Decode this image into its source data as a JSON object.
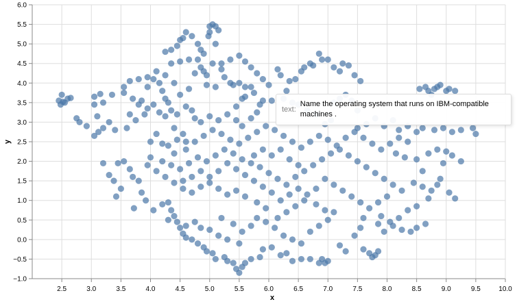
{
  "chart_data": {
    "type": "scatter",
    "title": "",
    "xlabel": "x",
    "ylabel": "y",
    "xlim": [
      2.0,
      10.0
    ],
    "ylim": [
      -1.0,
      6.0
    ],
    "x_ticks": [
      "2.5",
      "3.0",
      "3.5",
      "4.0",
      "4.5",
      "5.0",
      "5.5",
      "6.0",
      "6.5",
      "7.0",
      "7.5",
      "8.0",
      "8.5",
      "9.0",
      "9.5",
      "10.0"
    ],
    "y_ticks": [
      "6.0",
      "5.5",
      "5.0",
      "4.5",
      "4.0",
      "3.5",
      "3.0",
      "2.5",
      "2.0",
      "1.5",
      "1.0",
      "0.5",
      "0.0",
      "-0.5",
      "-1.0"
    ],
    "grid": true,
    "point_color": "#4c78a8",
    "points": [
      [
        2.45,
        3.55
      ],
      [
        2.5,
        3.7
      ],
      [
        2.55,
        3.5
      ],
      [
        2.48,
        3.45
      ],
      [
        2.6,
        3.6
      ],
      [
        2.52,
        3.52
      ],
      [
        2.65,
        3.62
      ],
      [
        2.75,
        3.1
      ],
      [
        2.8,
        3.0
      ],
      [
        2.92,
        2.9
      ],
      [
        3.05,
        3.45
      ],
      [
        3.05,
        3.65
      ],
      [
        3.15,
        3.72
      ],
      [
        3.2,
        3.5
      ],
      [
        3.1,
        3.15
      ],
      [
        3.3,
        3.0
      ],
      [
        3.2,
        2.85
      ],
      [
        3.12,
        2.75
      ],
      [
        3.05,
        2.65
      ],
      [
        3.35,
        3.7
      ],
      [
        3.55,
        3.75
      ],
      [
        3.7,
        3.6
      ],
      [
        3.65,
        3.2
      ],
      [
        3.6,
        2.85
      ],
      [
        3.85,
        3.55
      ],
      [
        3.9,
        3.2
      ],
      [
        3.75,
        3.05
      ],
      [
        3.4,
        2.8
      ],
      [
        3.2,
        1.95
      ],
      [
        3.45,
        1.95
      ],
      [
        3.3,
        1.65
      ],
      [
        3.38,
        1.5
      ],
      [
        3.42,
        1.1
      ],
      [
        3.5,
        1.3
      ],
      [
        3.55,
        2.0
      ],
      [
        3.7,
        1.6
      ],
      [
        3.8,
        1.5
      ],
      [
        3.65,
        1.8
      ],
      [
        3.85,
        1.2
      ],
      [
        3.72,
        0.8
      ],
      [
        3.92,
        1.0
      ],
      [
        4.05,
        0.75
      ],
      [
        4.2,
        0.9
      ],
      [
        4.3,
        0.95
      ],
      [
        3.95,
        3.9
      ],
      [
        4.05,
        4.1
      ],
      [
        4.15,
        4.0
      ],
      [
        4.2,
        3.8
      ],
      [
        4.25,
        3.6
      ],
      [
        4.3,
        3.5
      ],
      [
        4.35,
        3.3
      ],
      [
        4.45,
        3.2
      ],
      [
        4.4,
        2.85
      ],
      [
        4.1,
        2.7
      ],
      [
        4.0,
        2.5
      ],
      [
        4.2,
        2.45
      ],
      [
        4.3,
        2.4
      ],
      [
        4.45,
        2.55
      ],
      [
        4.55,
        2.7
      ],
      [
        4.6,
        2.5
      ],
      [
        4.25,
        4.8
      ],
      [
        4.35,
        4.85
      ],
      [
        4.45,
        4.95
      ],
      [
        4.5,
        5.1
      ],
      [
        4.55,
        5.15
      ],
      [
        4.6,
        5.3
      ],
      [
        4.7,
        5.2
      ],
      [
        4.8,
        5.0
      ],
      [
        4.85,
        4.85
      ],
      [
        4.65,
        4.6
      ],
      [
        4.5,
        4.55
      ],
      [
        4.35,
        4.5
      ],
      [
        4.75,
        4.25
      ],
      [
        4.85,
        4.4
      ],
      [
        4.9,
        4.3
      ],
      [
        4.95,
        4.2
      ],
      [
        5.0,
        5.45
      ],
      [
        5.05,
        5.5
      ],
      [
        5.1,
        5.45
      ],
      [
        5.15,
        5.35
      ],
      [
        5.0,
        5.3
      ],
      [
        4.98,
        5.2
      ],
      [
        5.1,
        5.0
      ],
      [
        5.05,
        4.5
      ],
      [
        5.2,
        4.35
      ],
      [
        5.25,
        4.15
      ],
      [
        5.35,
        4.0
      ],
      [
        5.4,
        3.95
      ],
      [
        5.1,
        3.9
      ],
      [
        4.95,
        3.95
      ],
      [
        5.5,
        4.0
      ],
      [
        5.6,
        3.9
      ],
      [
        5.7,
        3.9
      ],
      [
        5.85,
        3.45
      ],
      [
        5.9,
        3.55
      ],
      [
        5.55,
        3.6
      ],
      [
        5.45,
        3.4
      ],
      [
        5.7,
        3.1
      ],
      [
        5.8,
        3.25
      ],
      [
        6.05,
        3.55
      ],
      [
        6.15,
        4.35
      ],
      [
        6.2,
        4.2
      ],
      [
        6.45,
        4.1
      ],
      [
        6.55,
        4.3
      ],
      [
        6.6,
        4.4
      ],
      [
        6.7,
        4.5
      ],
      [
        6.75,
        4.45
      ],
      [
        6.85,
        4.75
      ],
      [
        6.9,
        4.6
      ],
      [
        7.0,
        4.6
      ],
      [
        7.1,
        4.4
      ],
      [
        7.2,
        4.3
      ],
      [
        7.25,
        4.5
      ],
      [
        7.35,
        4.45
      ],
      [
        7.45,
        4.2
      ],
      [
        7.55,
        4.05
      ],
      [
        6.35,
        4.05
      ],
      [
        6.3,
        3.8
      ],
      [
        6.25,
        3.6
      ],
      [
        6.4,
        3.5
      ],
      [
        6.5,
        3.45
      ],
      [
        6.65,
        3.3
      ],
      [
        6.8,
        3.2
      ],
      [
        7.1,
        3.5
      ],
      [
        7.2,
        3.6
      ],
      [
        7.3,
        3.7
      ],
      [
        7.4,
        3.55
      ],
      [
        7.5,
        3.3
      ],
      [
        7.05,
        3.05
      ],
      [
        6.95,
        2.95
      ],
      [
        8.55,
        3.85
      ],
      [
        8.65,
        3.9
      ],
      [
        8.7,
        3.8
      ],
      [
        8.8,
        3.85
      ],
      [
        8.85,
        3.9
      ],
      [
        8.9,
        3.95
      ],
      [
        9.0,
        3.8
      ],
      [
        9.05,
        3.85
      ],
      [
        9.15,
        3.8
      ],
      [
        8.75,
        3.7
      ],
      [
        8.2,
        2.8
      ],
      [
        8.35,
        2.9
      ],
      [
        8.5,
        2.75
      ],
      [
        8.6,
        2.85
      ],
      [
        8.8,
        2.8
      ],
      [
        8.95,
        2.85
      ],
      [
        9.1,
        2.75
      ],
      [
        9.25,
        2.8
      ],
      [
        9.45,
        2.85
      ],
      [
        9.5,
        2.7
      ],
      [
        8.15,
        2.2
      ],
      [
        8.3,
        2.1
      ],
      [
        8.5,
        2.05
      ],
      [
        8.7,
        2.2
      ],
      [
        8.85,
        2.3
      ],
      [
        9.0,
        2.25
      ],
      [
        9.1,
        2.15
      ],
      [
        9.25,
        2.0
      ],
      [
        8.95,
        1.95
      ],
      [
        8.6,
        1.75
      ],
      [
        8.45,
        1.45
      ],
      [
        8.6,
        1.35
      ],
      [
        8.75,
        1.25
      ],
      [
        8.85,
        1.4
      ],
      [
        8.9,
        1.55
      ],
      [
        9.05,
        1.2
      ],
      [
        9.15,
        1.05
      ],
      [
        8.7,
        1.05
      ],
      [
        8.5,
        0.85
      ],
      [
        8.35,
        0.75
      ],
      [
        8.2,
        0.55
      ],
      [
        8.05,
        0.45
      ],
      [
        7.9,
        0.6
      ],
      [
        7.85,
        0.4
      ],
      [
        7.95,
        0.2
      ],
      [
        8.1,
        0.35
      ],
      [
        8.25,
        0.25
      ],
      [
        8.4,
        0.2
      ],
      [
        8.5,
        0.3
      ],
      [
        8.65,
        0.4
      ],
      [
        7.7,
        -0.35
      ],
      [
        7.75,
        -0.45
      ],
      [
        7.8,
        -0.4
      ],
      [
        7.85,
        -0.3
      ],
      [
        7.6,
        -0.25
      ],
      [
        7.3,
        -0.3
      ],
      [
        7.2,
        -0.15
      ],
      [
        7.45,
        0.1
      ],
      [
        7.55,
        0.3
      ],
      [
        7.6,
        0.55
      ],
      [
        7.0,
        -0.55
      ],
      [
        6.95,
        -0.6
      ],
      [
        6.9,
        -0.5
      ],
      [
        6.85,
        -0.6
      ],
      [
        6.7,
        -0.5
      ],
      [
        6.55,
        -0.5
      ],
      [
        6.4,
        -0.55
      ],
      [
        6.3,
        -0.35
      ],
      [
        6.2,
        -0.4
      ],
      [
        6.05,
        -0.2
      ],
      [
        5.9,
        -0.25
      ],
      [
        5.85,
        -0.45
      ],
      [
        5.7,
        -0.5
      ],
      [
        5.6,
        -0.6
      ],
      [
        5.55,
        -0.7
      ],
      [
        5.5,
        -0.85
      ],
      [
        5.45,
        -0.75
      ],
      [
        5.4,
        -0.6
      ],
      [
        5.3,
        -0.55
      ],
      [
        5.25,
        -0.45
      ],
      [
        5.1,
        -0.5
      ],
      [
        5.05,
        -0.35
      ],
      [
        4.95,
        -0.3
      ],
      [
        4.9,
        -0.2
      ],
      [
        4.8,
        -0.1
      ],
      [
        4.7,
        0.0
      ],
      [
        4.6,
        0.05
      ],
      [
        4.55,
        0.15
      ],
      [
        4.5,
        0.3
      ],
      [
        4.45,
        0.45
      ],
      [
        4.4,
        0.6
      ],
      [
        4.35,
        0.75
      ],
      [
        4.3,
        0.5
      ],
      [
        4.6,
        0.35
      ],
      [
        4.75,
        0.45
      ],
      [
        4.85,
        0.3
      ],
      [
        5.0,
        0.25
      ],
      [
        5.15,
        0.1
      ],
      [
        5.3,
        0.0
      ],
      [
        5.5,
        -0.1
      ],
      [
        5.2,
        0.55
      ],
      [
        5.4,
        0.4
      ],
      [
        5.55,
        0.2
      ],
      [
        5.7,
        0.35
      ],
      [
        5.8,
        0.55
      ],
      [
        5.95,
        0.45
      ],
      [
        6.1,
        0.3
      ],
      [
        6.25,
        0.1
      ],
      [
        6.4,
        0.0
      ],
      [
        6.55,
        -0.1
      ],
      [
        6.7,
        0.2
      ],
      [
        6.85,
        0.35
      ],
      [
        7.0,
        0.5
      ],
      [
        7.1,
        0.7
      ],
      [
        6.95,
        0.75
      ],
      [
        6.8,
        0.9
      ],
      [
        6.6,
        1.0
      ],
      [
        6.45,
        0.85
      ],
      [
        6.3,
        0.7
      ],
      [
        6.15,
        0.55
      ],
      [
        5.95,
        0.8
      ],
      [
        5.8,
        0.95
      ],
      [
        5.6,
        1.1
      ],
      [
        5.45,
        1.25
      ],
      [
        5.3,
        1.15
      ],
      [
        5.15,
        1.3
      ],
      [
        5.0,
        1.45
      ],
      [
        4.85,
        1.35
      ],
      [
        4.7,
        1.2
      ],
      [
        4.55,
        1.3
      ],
      [
        4.4,
        1.45
      ],
      [
        4.25,
        1.6
      ],
      [
        4.1,
        1.75
      ],
      [
        3.95,
        1.9
      ],
      [
        4.0,
        2.1
      ],
      [
        4.2,
        2.0
      ],
      [
        4.35,
        1.9
      ],
      [
        4.5,
        1.8
      ],
      [
        4.65,
        1.95
      ],
      [
        4.8,
        2.1
      ],
      [
        4.95,
        2.0
      ],
      [
        5.1,
        2.15
      ],
      [
        5.25,
        2.3
      ],
      [
        5.4,
        2.2
      ],
      [
        5.55,
        2.05
      ],
      [
        5.7,
        1.95
      ],
      [
        5.85,
        1.85
      ],
      [
        6.0,
        1.7
      ],
      [
        6.15,
        1.55
      ],
      [
        6.3,
        1.4
      ],
      [
        6.45,
        1.6
      ],
      [
        6.6,
        1.75
      ],
      [
        6.75,
        1.9
      ],
      [
        6.9,
        2.05
      ],
      [
        7.05,
        2.2
      ],
      [
        7.2,
        2.3
      ],
      [
        7.35,
        2.15
      ],
      [
        7.5,
        2.0
      ],
      [
        7.65,
        1.85
      ],
      [
        7.8,
        1.7
      ],
      [
        7.95,
        1.55
      ],
      [
        8.1,
        1.4
      ],
      [
        8.25,
        1.25
      ],
      [
        8.0,
        1.1
      ],
      [
        7.85,
        0.95
      ],
      [
        7.7,
        0.8
      ],
      [
        7.55,
        0.95
      ],
      [
        7.4,
        1.1
      ],
      [
        7.25,
        1.25
      ],
      [
        7.1,
        1.4
      ],
      [
        6.95,
        1.55
      ],
      [
        6.8,
        1.3
      ],
      [
        6.65,
        1.15
      ],
      [
        6.5,
        1.3
      ],
      [
        6.35,
        1.15
      ],
      [
        6.2,
        1.0
      ],
      [
        6.05,
        1.2
      ],
      [
        5.9,
        1.35
      ],
      [
        5.75,
        1.5
      ],
      [
        5.6,
        1.65
      ],
      [
        5.45,
        1.8
      ],
      [
        5.3,
        1.95
      ],
      [
        5.15,
        1.75
      ],
      [
        5.0,
        1.6
      ],
      [
        4.85,
        1.75
      ],
      [
        4.7,
        1.6
      ],
      [
        4.55,
        1.5
      ],
      [
        4.4,
        2.2
      ],
      [
        4.6,
        2.3
      ],
      [
        4.75,
        2.5
      ],
      [
        4.9,
        2.65
      ],
      [
        5.05,
        2.8
      ],
      [
        5.2,
        2.7
      ],
      [
        5.35,
        2.55
      ],
      [
        5.5,
        2.45
      ],
      [
        5.65,
        2.6
      ],
      [
        5.8,
        2.75
      ],
      [
        5.95,
        2.9
      ],
      [
        6.1,
        2.8
      ],
      [
        6.25,
        2.65
      ],
      [
        6.4,
        2.5
      ],
      [
        6.55,
        2.35
      ],
      [
        6.7,
        2.5
      ],
      [
        6.85,
        2.65
      ],
      [
        7.0,
        2.55
      ],
      [
        7.15,
        2.4
      ],
      [
        7.3,
        2.6
      ],
      [
        7.45,
        2.75
      ],
      [
        7.6,
        2.6
      ],
      [
        7.75,
        2.45
      ],
      [
        7.9,
        2.3
      ],
      [
        8.05,
        2.45
      ],
      [
        8.2,
        2.6
      ],
      [
        8.35,
        2.5
      ],
      [
        7.65,
        2.95
      ],
      [
        7.8,
        3.1
      ],
      [
        7.95,
        2.9
      ],
      [
        8.1,
        3.05
      ],
      [
        7.5,
        2.85
      ],
      [
        6.2,
        2.3
      ],
      [
        6.05,
        2.15
      ],
      [
        5.9,
        2.3
      ],
      [
        5.75,
        2.15
      ],
      [
        6.35,
        2.05
      ],
      [
        6.5,
        1.9
      ],
      [
        4.05,
        3.45
      ],
      [
        4.15,
        3.25
      ],
      [
        4.25,
        3.15
      ],
      [
        3.95,
        3.35
      ],
      [
        3.8,
        3.45
      ],
      [
        4.6,
        3.4
      ],
      [
        4.7,
        3.3
      ],
      [
        4.75,
        3.1
      ],
      [
        4.85,
        3.0
      ],
      [
        5.0,
        3.15
      ],
      [
        5.15,
        3.05
      ],
      [
        5.3,
        3.2
      ],
      [
        5.45,
        3.05
      ],
      [
        5.55,
        2.9
      ],
      [
        4.65,
        3.85
      ],
      [
        4.5,
        3.7
      ],
      [
        4.4,
        4.0
      ],
      [
        4.25,
        4.2
      ],
      [
        4.1,
        4.3
      ],
      [
        3.95,
        4.15
      ],
      [
        3.8,
        4.1
      ],
      [
        3.65,
        4.05
      ],
      [
        3.55,
        3.9
      ],
      [
        4.8,
        4.6
      ],
      [
        4.9,
        4.75
      ],
      [
        5.2,
        4.5
      ],
      [
        5.35,
        4.6
      ],
      [
        5.5,
        4.7
      ],
      [
        5.6,
        4.55
      ],
      [
        5.7,
        4.4
      ],
      [
        5.8,
        4.25
      ],
      [
        5.9,
        4.1
      ],
      [
        6.0,
        3.95
      ],
      [
        5.75,
        3.75
      ],
      [
        5.6,
        3.65
      ]
    ]
  },
  "tooltip": {
    "key": "text:",
    "value": "Name the operating system that runs on IBM-compatible machines ."
  }
}
